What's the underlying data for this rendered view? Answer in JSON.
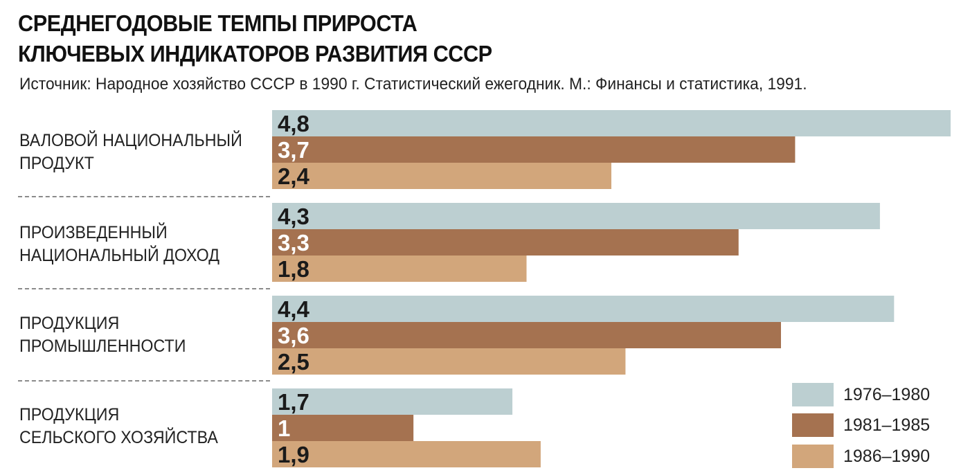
{
  "title_lines": [
    "СРЕДНЕГОДОВЫЕ ТЕМПЫ ПРИРОСТА",
    "КЛЮЧЕВЫХ ИНДИКАТОРОВ РАЗВИТИЯ СССР"
  ],
  "subtitle": "Источник: Народное хозяйство СССР в 1990 г. Статистический ежегодник. М.: Финансы и статистика, 1991.",
  "chart_data": {
    "type": "bar",
    "orientation": "horizontal",
    "categories": [
      [
        "ВАЛОВОЙ НАЦИОНАЛЬНЫЙ",
        "ПРОДУКТ"
      ],
      [
        "ПРОИЗВЕДЕННЫЙ",
        "НАЦИОНАЛЬНЫЙ ДОХОД"
      ],
      [
        "ПРОДУКЦИЯ",
        "ПРОМЫШЛЕННОСТИ"
      ],
      [
        "ПРОДУКЦИЯ",
        "СЕЛЬСКОГО ХОЗЯЙСТВА"
      ]
    ],
    "series": [
      {
        "name": "1976–1980",
        "color": "#bccfd1",
        "label_color": "#1a1a1a",
        "values": [
          4.8,
          4.3,
          4.4,
          1.7
        ],
        "labels": [
          "4,8",
          "4,3",
          "4,4",
          "1,7"
        ]
      },
      {
        "name": "1981–1985",
        "color": "#a57250",
        "label_color": "#ffffff",
        "values": [
          3.7,
          3.3,
          3.6,
          1
        ],
        "labels": [
          "3,7",
          "3,3",
          "3,6",
          "1"
        ]
      },
      {
        "name": "1986–1990",
        "color": "#d2a67b",
        "label_color": "#1a1a1a",
        "values": [
          2.4,
          1.8,
          2.5,
          1.9
        ],
        "labels": [
          "2,4",
          "1,8",
          "2,5",
          "1,9"
        ]
      }
    ],
    "xlim": [
      0,
      4.8
    ],
    "grid": false,
    "legend": "bottom-right"
  }
}
